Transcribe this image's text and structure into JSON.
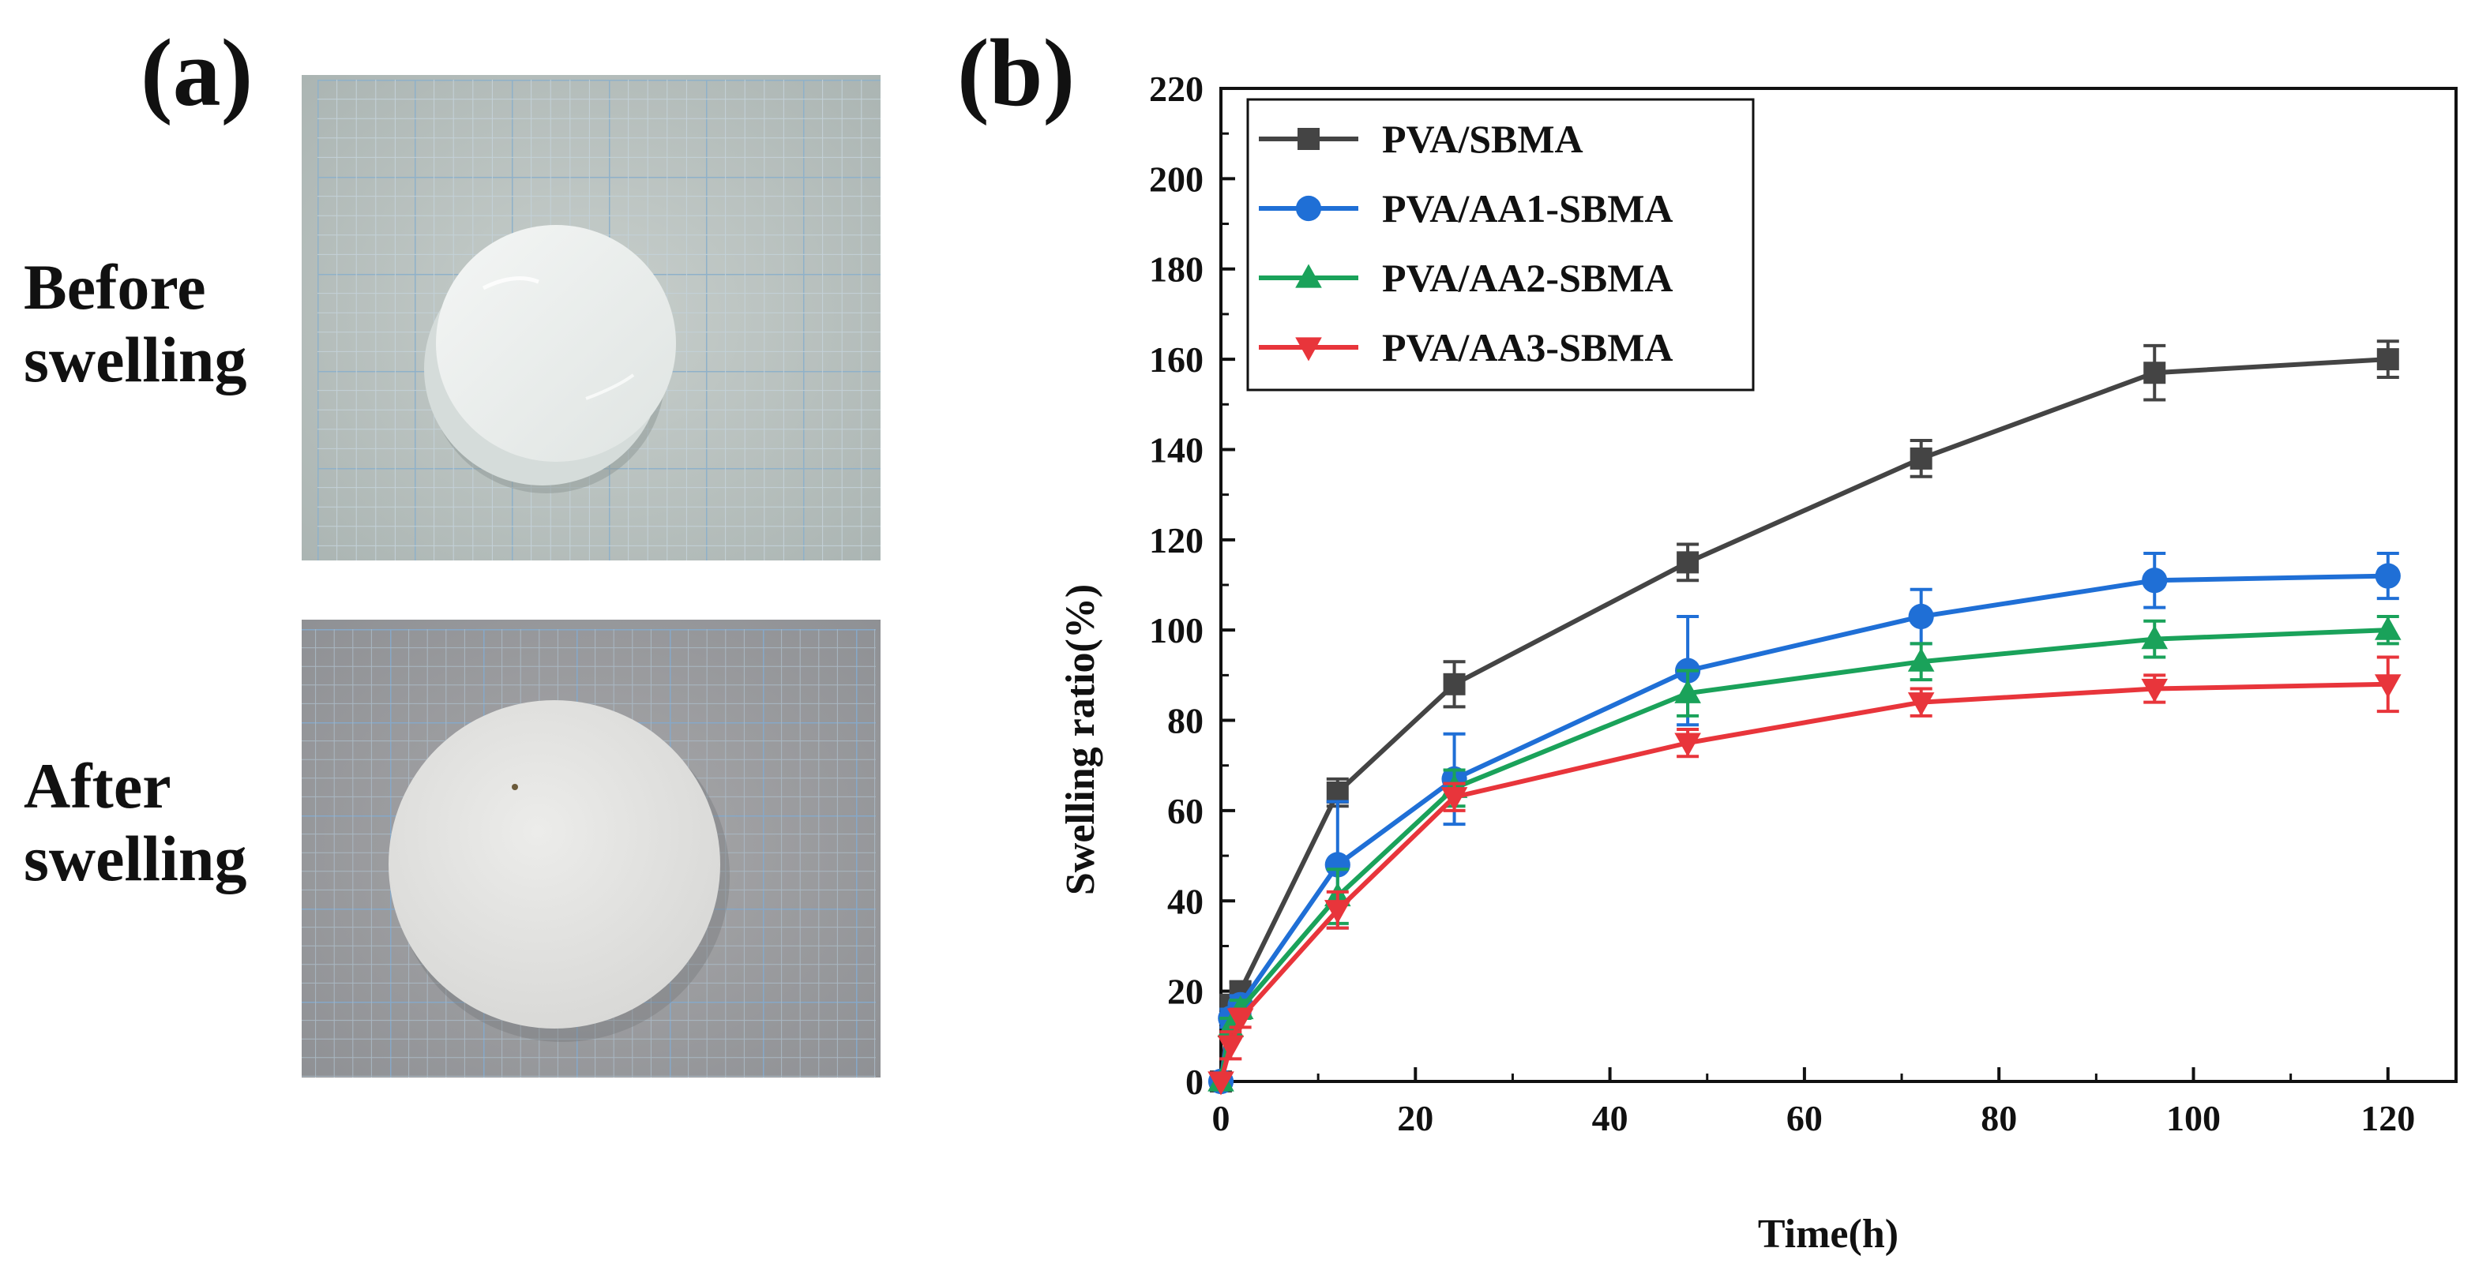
{
  "panel_a": {
    "label": "(a)",
    "before_label": [
      "Before",
      "swelling"
    ],
    "after_label": [
      "After",
      "swelling"
    ]
  },
  "panel_b": {
    "label": "(b)"
  },
  "chart_data": {
    "type": "line",
    "title": "",
    "xlabel": "Time(h)",
    "ylabel": "Swelling ratio(%)",
    "xlim": [
      0,
      127
    ],
    "ylim": [
      0,
      220
    ],
    "xticks": [
      0,
      20,
      40,
      60,
      80,
      100,
      120
    ],
    "yticks": [
      0,
      20,
      40,
      60,
      80,
      100,
      120,
      140,
      160,
      180,
      200,
      220
    ],
    "grid": false,
    "legend_position": "top-left",
    "x": [
      0,
      1,
      2,
      12,
      24,
      48,
      72,
      96,
      120
    ],
    "series": [
      {
        "name": "PVA/SBMA",
        "color": "#444444",
        "marker": "square",
        "values": [
          0,
          17,
          20,
          64,
          88,
          115,
          138,
          157,
          160
        ],
        "errors": [
          0,
          2,
          2,
          3,
          5,
          4,
          4,
          6,
          4
        ]
      },
      {
        "name": "PVA/AA1-SBMA",
        "color": "#1f6fd6",
        "marker": "circle",
        "values": [
          0,
          14,
          17,
          48,
          67,
          91,
          103,
          111,
          112
        ],
        "errors": [
          0,
          2,
          2,
          14,
          10,
          12,
          6,
          6,
          5
        ]
      },
      {
        "name": "PVA/AA2-SBMA",
        "color": "#1aa25a",
        "marker": "triangle-up",
        "values": [
          0,
          12,
          16,
          41,
          65,
          86,
          93,
          98,
          100
        ],
        "errors": [
          0,
          2,
          2,
          6,
          4,
          5,
          4,
          4,
          3
        ]
      },
      {
        "name": "PVA/AA3-SBMA",
        "color": "#e8353b",
        "marker": "triangle-down",
        "values": [
          0,
          8,
          14,
          38,
          63,
          75,
          84,
          87,
          88
        ],
        "errors": [
          0,
          3,
          2,
          4,
          3,
          3,
          3,
          3,
          6
        ]
      }
    ]
  }
}
